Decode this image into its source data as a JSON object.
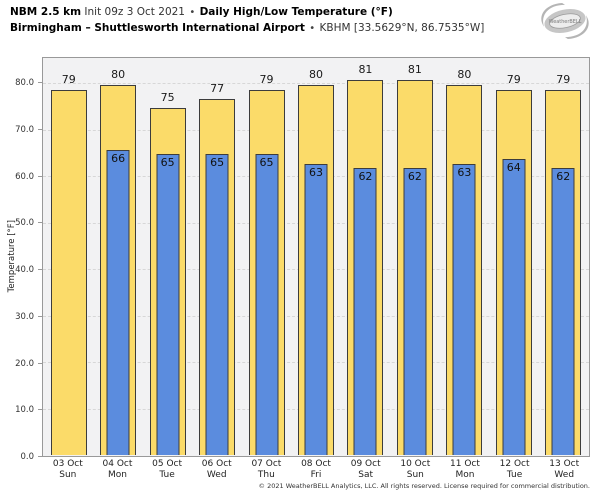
{
  "header": {
    "model": "NBM 2.5 km",
    "init": "Init 09z 3 Oct 2021",
    "separator": "•",
    "product": "Daily High/Low Temperature (°F)",
    "location": "Birmingham – Shuttlesworth International Airport",
    "station": "KBHM [33.5629°N, 86.7535°W]"
  },
  "logo": {
    "text": "WeatherBELL"
  },
  "chart_data": {
    "type": "bar",
    "title": "NBM 2.5 km Init 09z 3 Oct 2021 • Daily High/Low Temperature (°F) — Birmingham – Shuttlesworth International Airport • KBHM",
    "xlabel": "",
    "ylabel": "Temperature [°F]",
    "ylim": [
      0,
      85.6
    ],
    "grid": "horizontal-dashed",
    "legend_position": "none",
    "yticks": {
      "values": [
        0,
        10,
        20,
        30,
        40,
        50,
        60,
        70,
        80
      ],
      "labels": [
        "0.0",
        "10.0",
        "20.0",
        "30.0",
        "40.0",
        "50.0",
        "60.0",
        "70.0",
        "80.0"
      ]
    },
    "categories": [
      {
        "date": "03 Oct",
        "day": "Sun"
      },
      {
        "date": "04 Oct",
        "day": "Mon"
      },
      {
        "date": "05 Oct",
        "day": "Tue"
      },
      {
        "date": "06 Oct",
        "day": "Wed"
      },
      {
        "date": "07 Oct",
        "day": "Thu"
      },
      {
        "date": "08 Oct",
        "day": "Fri"
      },
      {
        "date": "09 Oct",
        "day": "Sat"
      },
      {
        "date": "10 Oct",
        "day": "Sun"
      },
      {
        "date": "11 Oct",
        "day": "Mon"
      },
      {
        "date": "12 Oct",
        "day": "Tue"
      },
      {
        "date": "13 Oct",
        "day": "Wed"
      }
    ],
    "series": [
      {
        "name": "Daily High",
        "color": "#fbdb69",
        "values": [
          79,
          80,
          75,
          77,
          79,
          80,
          81,
          81,
          80,
          79,
          79
        ]
      },
      {
        "name": "Daily Low",
        "color": "#5b8cde",
        "values": [
          null,
          66,
          65,
          65,
          65,
          63,
          62,
          62,
          63,
          64,
          62
        ]
      }
    ]
  },
  "footer": {
    "copyright": "© 2021 WeatherBELL Analytics, LLC. All rights reserved. License required for commercial distribution."
  }
}
